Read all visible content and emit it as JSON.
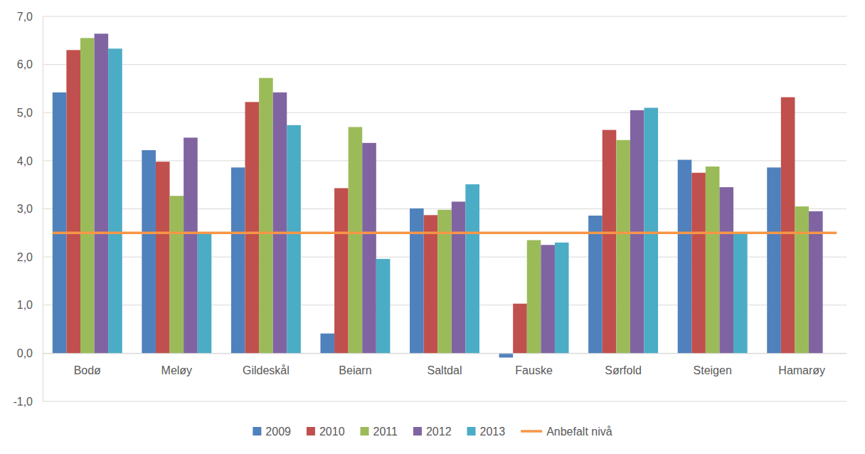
{
  "chart_data": {
    "type": "bar",
    "categories": [
      "Bodø",
      "Meløy",
      "Gildeskål",
      "Beiarn",
      "Saltdal",
      "Fauske",
      "Sørfold",
      "Steigen",
      "Hamarøy"
    ],
    "series": [
      {
        "name": "2009",
        "color": "#4f81bd",
        "values": [
          5.42,
          4.22,
          3.86,
          0.41,
          3.01,
          -0.09,
          2.86,
          4.02,
          3.86
        ]
      },
      {
        "name": "2010",
        "color": "#c0504d",
        "values": [
          6.3,
          3.98,
          5.22,
          3.43,
          2.87,
          1.03,
          4.64,
          3.75,
          5.32
        ]
      },
      {
        "name": "2011",
        "color": "#9bbb59",
        "values": [
          6.55,
          3.27,
          5.72,
          4.7,
          2.98,
          2.35,
          4.43,
          3.88,
          3.05
        ]
      },
      {
        "name": "2012",
        "color": "#8064a2",
        "values": [
          6.64,
          4.48,
          5.42,
          4.37,
          3.15,
          2.25,
          5.05,
          3.45,
          2.95
        ]
      },
      {
        "name": "2013",
        "color": "#4bacc6",
        "values": [
          6.33,
          2.48,
          4.74,
          1.96,
          3.51,
          2.3,
          5.1,
          2.5,
          null
        ]
      },
      {
        "name": "Anbefalt nivå",
        "color": "#f79646",
        "type": "line",
        "values": [
          2.5,
          2.5,
          2.5,
          2.5,
          2.5,
          2.5,
          2.5,
          2.5,
          2.5
        ]
      }
    ],
    "ylim": [
      -1,
      7
    ],
    "yticks": [
      {
        "value": -1,
        "label": "-1,0"
      },
      {
        "value": 0,
        "label": "0,0"
      },
      {
        "value": 1,
        "label": "1,0"
      },
      {
        "value": 2,
        "label": "2,0"
      },
      {
        "value": 3,
        "label": "3,0"
      },
      {
        "value": 4,
        "label": "4,0"
      },
      {
        "value": 5,
        "label": "5,0"
      },
      {
        "value": 6,
        "label": "6,0"
      },
      {
        "value": 7,
        "label": "7,0"
      }
    ],
    "grid": true,
    "legend": "bottom"
  }
}
